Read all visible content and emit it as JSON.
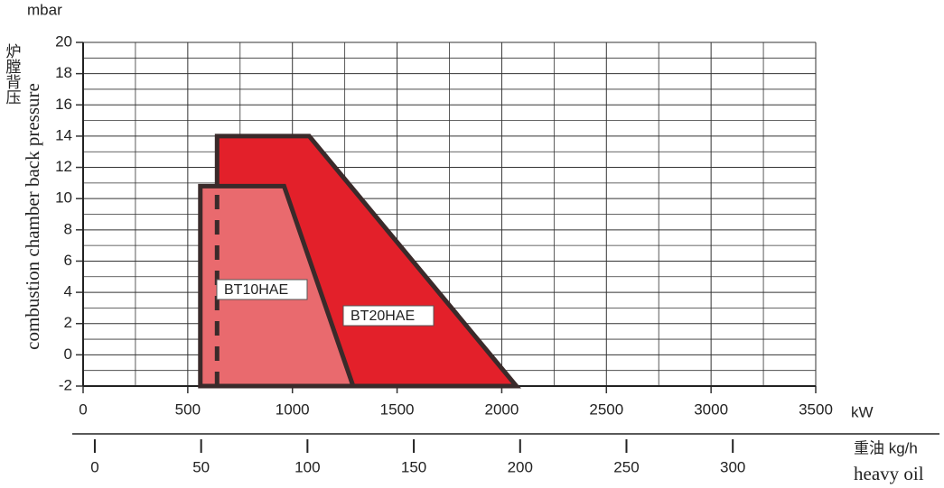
{
  "chart_data": {
    "type": "field",
    "y_unit": "mbar",
    "y_label_cn": "炉膛背压",
    "y_label": "combustion chamber back pressure",
    "x_unit": "kW",
    "x2_label_cn": "重油 kg/h",
    "x2_label": "heavy oil",
    "xlim": [
      0,
      3500
    ],
    "xticks": [
      0,
      500,
      1000,
      1500,
      2000,
      2500,
      3000,
      3500
    ],
    "ylim": [
      -2,
      20
    ],
    "yticks": [
      -2,
      0,
      2,
      4,
      6,
      8,
      10,
      12,
      14,
      16,
      18,
      20
    ],
    "x2lim": [
      -5.5,
      339
    ],
    "x2ticks": [
      0,
      50,
      100,
      150,
      200,
      250,
      300
    ],
    "grid": true,
    "series": [
      {
        "name": "BT20HAE",
        "color": "#e3202a",
        "x": [
          640,
          640,
          1080,
          2070
        ],
        "values": [
          -2,
          14,
          14,
          -2
        ]
      },
      {
        "name": "BT10HAE",
        "color": "#e96a6e",
        "x": [
          560,
          560,
          960,
          1290
        ],
        "values": [
          -2,
          10.8,
          10.8,
          -2
        ]
      }
    ]
  }
}
